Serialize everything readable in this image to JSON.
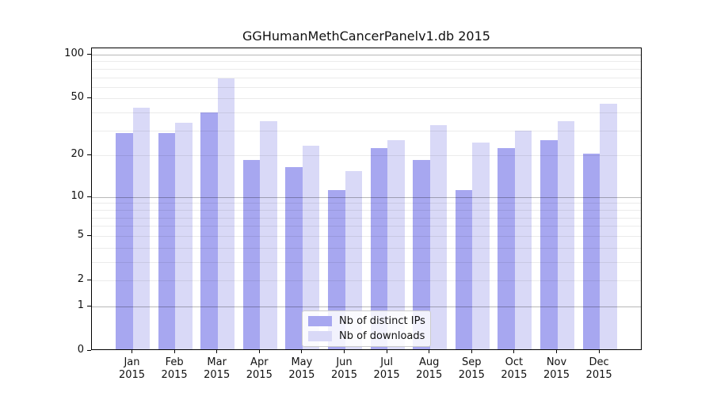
{
  "chart_data": {
    "type": "bar",
    "title": "GGHumanMethCancerPanelv1.db 2015",
    "categories": [
      "Jan",
      "Feb",
      "Mar",
      "Apr",
      "May",
      "Jun",
      "Jul",
      "Aug",
      "Sep",
      "Oct",
      "Nov",
      "Dec"
    ],
    "year_label": "2015",
    "series": [
      {
        "name": "Nb of distinct IPs",
        "color": "#a7a7f0",
        "values": [
          28,
          28,
          39,
          18,
          16,
          11,
          22,
          18,
          11,
          22,
          25,
          20
        ]
      },
      {
        "name": "Nb of downloads",
        "color": "#d9d9f7",
        "values": [
          42,
          33,
          67,
          34,
          23,
          15,
          25,
          32,
          24,
          29,
          34,
          45
        ]
      }
    ],
    "yscale": "log1p",
    "yticks": [
      0,
      1,
      2,
      5,
      10,
      20,
      50,
      100
    ],
    "ylim": [
      0,
      110
    ],
    "grid": true,
    "legend_position": "lower center"
  }
}
